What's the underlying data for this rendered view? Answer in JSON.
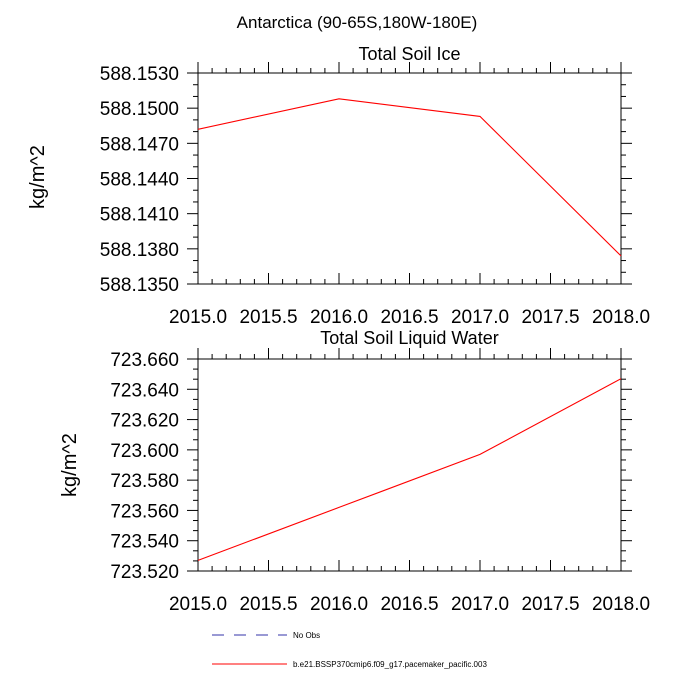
{
  "suptitle": "Antarctica (90-65S,180W-180E)",
  "chart_data": [
    {
      "type": "line",
      "title": "Total Soil Ice",
      "xlabel": "",
      "ylabel": "kg/m^2",
      "xlim": [
        2015.0,
        2018.0
      ],
      "ylim": [
        588.135,
        588.153
      ],
      "xticks": [
        "2015.0",
        "2015.5",
        "2016.0",
        "2016.5",
        "2017.0",
        "2017.5",
        "2018.0"
      ],
      "yticks": [
        "588.1350",
        "588.1380",
        "588.1410",
        "588.1440",
        "588.1470",
        "588.1500",
        "588.1530"
      ],
      "series": [
        {
          "name": "b.e21.BSSP370cmip6.f09_g17.pacemaker_pacific.003",
          "color": "#ff0000",
          "x": [
            2015.0,
            2016.0,
            2017.0,
            2018.0
          ],
          "y": [
            588.1482,
            588.1508,
            588.1493,
            588.1374
          ]
        }
      ]
    },
    {
      "type": "line",
      "title": "Total Soil Liquid Water",
      "xlabel": "",
      "ylabel": "kg/m^2",
      "xlim": [
        2015.0,
        2018.0
      ],
      "ylim": [
        723.52,
        723.66
      ],
      "xticks": [
        "2015.0",
        "2015.5",
        "2016.0",
        "2016.5",
        "2017.0",
        "2017.5",
        "2018.0"
      ],
      "yticks": [
        "723.520",
        "723.540",
        "723.560",
        "723.580",
        "723.600",
        "723.620",
        "723.640",
        "723.660"
      ],
      "series": [
        {
          "name": "b.e21.BSSP370cmip6.f09_g17.pacemaker_pacific.003",
          "color": "#ff0000",
          "x": [
            2015.0,
            2016.0,
            2017.0,
            2018.0
          ],
          "y": [
            723.527,
            723.562,
            723.597,
            723.647
          ]
        }
      ]
    }
  ],
  "legend": [
    {
      "label": "No Obs",
      "color": "#3333aa",
      "dash": "dashed"
    },
    {
      "label": "b.e21.BSSP370cmip6.f09_g17.pacemaker_pacific.003",
      "color": "#ff0000",
      "dash": "solid"
    }
  ]
}
